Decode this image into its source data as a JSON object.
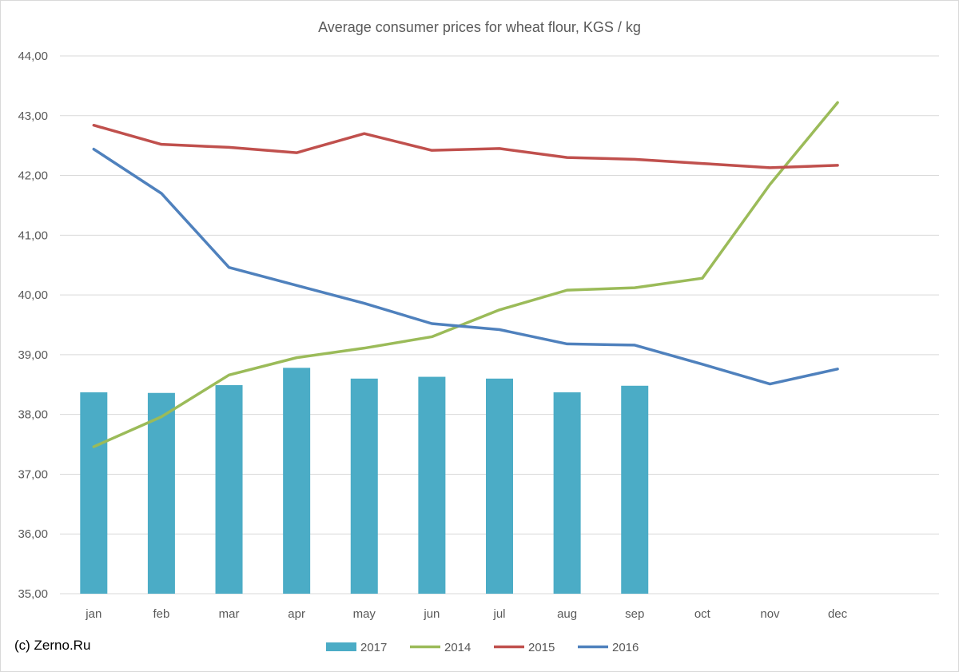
{
  "credit": "(c) Zerno.Ru",
  "chart_data": {
    "type": "bar",
    "title": "Average consumer prices for wheat flour, KGS / kg",
    "xlabel": "",
    "ylabel": "",
    "categories": [
      "jan",
      "feb",
      "mar",
      "apr",
      "may",
      "jun",
      "jul",
      "aug",
      "sep",
      "oct",
      "nov",
      "dec"
    ],
    "ylim": [
      35.0,
      44.0
    ],
    "yticks": [
      "35,00",
      "36,00",
      "37,00",
      "38,00",
      "39,00",
      "40,00",
      "41,00",
      "42,00",
      "43,00",
      "44,00"
    ],
    "grid": "horizontal",
    "legend": "bottom",
    "series": [
      {
        "name": "2017",
        "kind": "bar",
        "color": "#4bacc6",
        "values": [
          38.37,
          38.36,
          38.49,
          38.78,
          38.6,
          38.63,
          38.6,
          38.37,
          38.48,
          null,
          null,
          null
        ]
      },
      {
        "name": "2014",
        "kind": "line",
        "color": "#9bbb59",
        "values": [
          37.46,
          37.96,
          38.66,
          38.95,
          39.11,
          39.3,
          39.75,
          40.08,
          40.12,
          40.28,
          41.85,
          43.22
        ]
      },
      {
        "name": "2015",
        "kind": "line",
        "color": "#c0504d",
        "values": [
          42.84,
          42.52,
          42.47,
          42.38,
          42.7,
          42.42,
          42.45,
          42.3,
          42.27,
          42.2,
          42.13,
          42.17
        ]
      },
      {
        "name": "2016",
        "kind": "line",
        "color": "#4f81bd",
        "values": [
          42.44,
          41.7,
          40.46,
          40.16,
          39.86,
          39.52,
          39.42,
          39.18,
          39.16,
          38.84,
          38.51,
          38.76
        ]
      }
    ]
  }
}
